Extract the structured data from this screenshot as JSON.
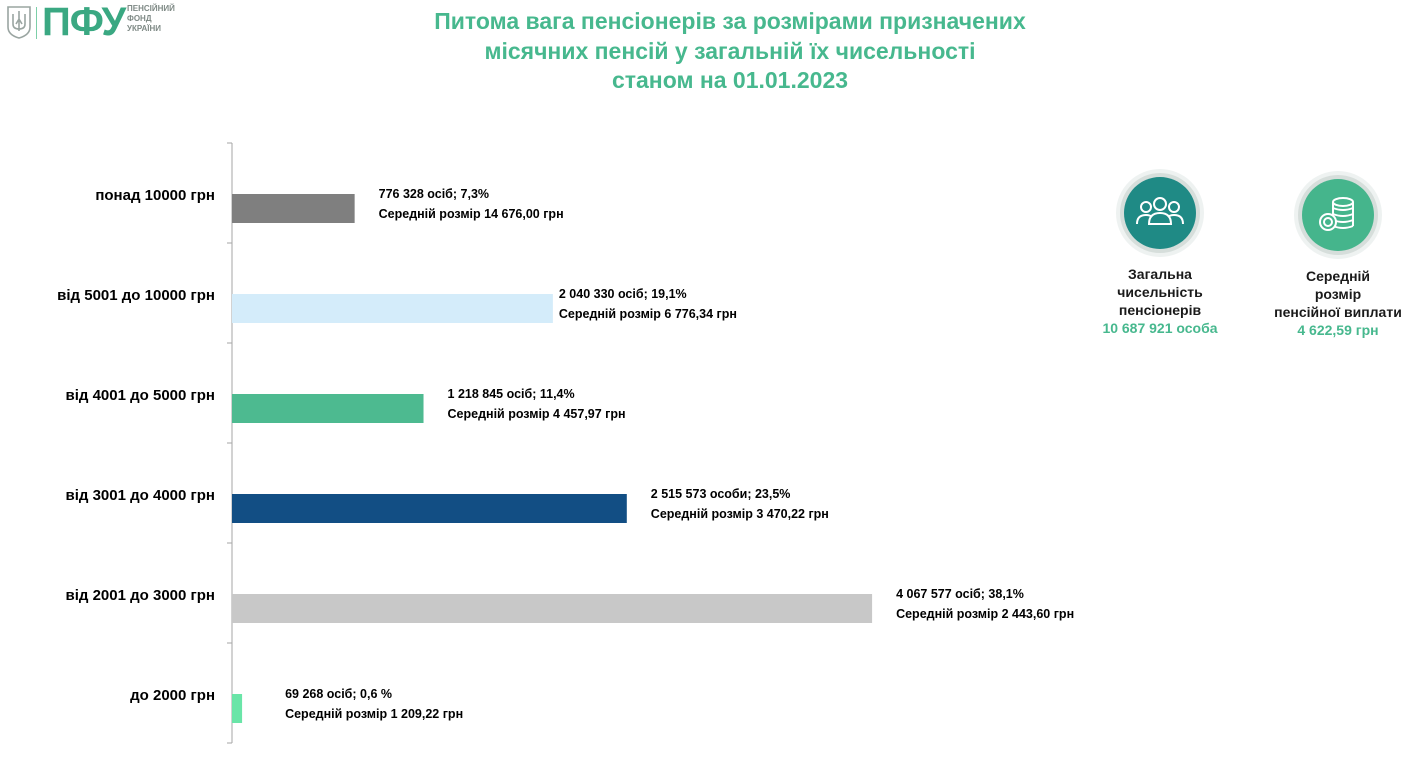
{
  "logo": {
    "abbr": "ПФУ",
    "name_lines": [
      "ПЕНСІЙНИЙ",
      "ФОНД",
      "УКРАЇНИ"
    ],
    "emblem": "trident-emblem-icon"
  },
  "title": {
    "lines": [
      "Питома вага пенсіонерів за розмірами призначених",
      "місячних пенсій у загальній їх чисельності",
      "станом на 01.01.2023"
    ]
  },
  "stats": [
    {
      "icon": "people-group-icon",
      "label_lines": [
        "Загальна",
        "чисельність",
        "пенсіонерів"
      ],
      "value": "10 687 921 особа",
      "color": "#1f8a85"
    },
    {
      "icon": "coin-stack-icon",
      "label_lines": [
        "Середній",
        "розмір",
        "пенсійної виплати"
      ],
      "value": "4 622,59 грн",
      "color": "#45b58c"
    }
  ],
  "chart_data": {
    "type": "bar",
    "orientation": "horizontal",
    "categories": [
      "понад 10000 грн",
      "від 5001 до 10000 грн",
      "від 4001 до 5000 грн",
      "від 3001 до 4000 грн",
      "від 2001 до 3000 грн",
      "до 2000 грн"
    ],
    "values": [
      7.3,
      19.1,
      11.4,
      23.5,
      38.1,
      0.6
    ],
    "colors": [
      "#7f7f7f",
      "#d4ecfa",
      "#4dba90",
      "#124e84",
      "#c8c8c8",
      "#6ae5a8"
    ],
    "data_labels": [
      [
        "776 328 осіб;  7,3%",
        "Середній розмір 14 676,00 грн"
      ],
      [
        "2 040 330 осіб; 19,1%",
        "Середній розмір 6 776,34 грн"
      ],
      [
        "1 218 845 осіб; 11,4%",
        "Середній розмір 4 457,97 грн"
      ],
      [
        "2 515 573 особи; 23,5%",
        "Середній розмір 3 470,22 грн"
      ],
      [
        "4 067 577 осіб; 38,1%",
        "Середній розмір 2 443,60 грн"
      ],
      [
        "69 268 осіб; 0,6 %",
        "Середній розмір 1 209,22 грн"
      ]
    ],
    "xlim": [
      0,
      40
    ],
    "grid": false,
    "legend": "none"
  }
}
